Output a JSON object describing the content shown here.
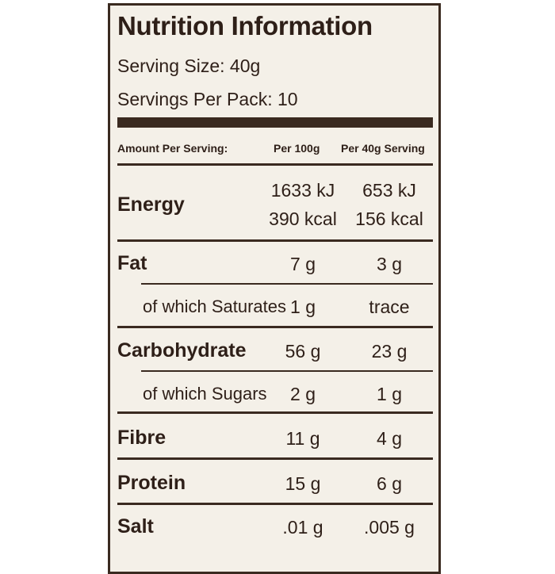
{
  "header": {
    "title": "Nutrition Information",
    "serving_size": "Serving Size: 40g",
    "servings_per_pack": "Servings Per Pack: 10"
  },
  "table": {
    "columns": [
      "Amount Per Serving:",
      "Per 100g",
      "Per 40g Serving"
    ],
    "rows": [
      {
        "label": "Energy",
        "per_100g": [
          "1633 kJ",
          "390 kcal"
        ],
        "per_serving": [
          "653 kJ",
          "156 kcal"
        ]
      },
      {
        "label": "Fat",
        "per_100g": "7 g",
        "per_serving": "3 g"
      },
      {
        "label": "of which Saturates",
        "per_100g": "1 g",
        "per_serving": "trace"
      },
      {
        "label": "Carbohydrate",
        "per_100g": "56 g",
        "per_serving": "23 g"
      },
      {
        "label": "of which Sugars",
        "per_100g": "2 g",
        "per_serving": "1 g"
      },
      {
        "label": "Fibre",
        "per_100g": "11 g",
        "per_serving": "4 g"
      },
      {
        "label": "Protein",
        "per_100g": "15 g",
        "per_serving": "6 g"
      },
      {
        "label": "Salt",
        "per_100g": ".01 g",
        "per_serving": ".005 g"
      }
    ]
  }
}
